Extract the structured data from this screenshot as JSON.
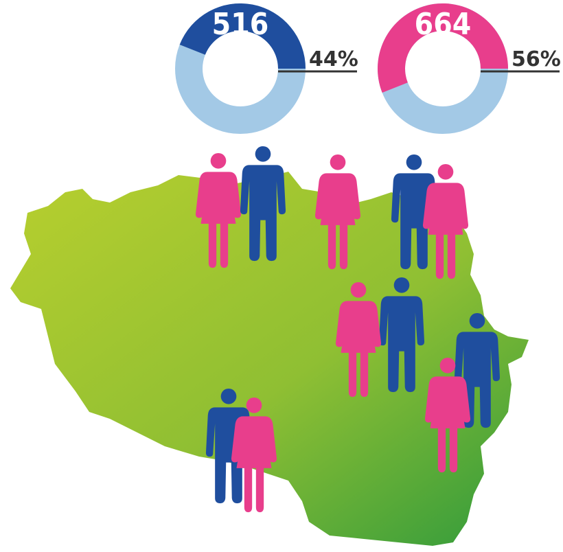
{
  "chart_data": [
    {
      "type": "donut",
      "title": "516",
      "values": [
        44
      ],
      "value_labels": [
        "44%"
      ],
      "color": "#1f4e9e",
      "track_color": "#a3c9e6"
    },
    {
      "type": "donut",
      "title": "664",
      "values": [
        56
      ],
      "value_labels": [
        "56%"
      ],
      "color": "#e83e8c",
      "track_color": "#a3c9e6"
    }
  ]
}
